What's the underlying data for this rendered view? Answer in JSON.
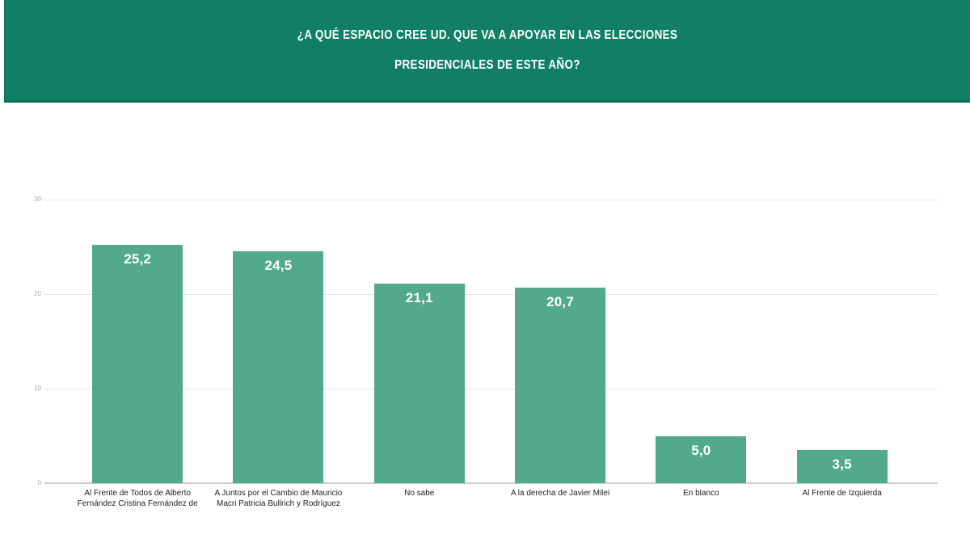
{
  "header": {
    "title_line1": "¿A QUÉ ESPACIO CREE UD. QUE VA A APOYAR EN LAS ELECCIONES",
    "title_line2": "PRESIDENCIALES DE ESTE AÑO?",
    "background_color": "#117f64",
    "border_color": "#0e6e57",
    "text_color": "#ffffff"
  },
  "chart_data": {
    "type": "bar",
    "title": "¿A qué espacio cree Ud. que va a apoyar en las elecciones presidenciales de este año?",
    "categories": [
      "Al Frente de Todos de Alberto Fernández Cristina Fernández de",
      "A Juntos por el Cambio de Mauricio Macri Patricia Bullrich y Rodríguez",
      "No sabe",
      "A la derecha de Javier Milei",
      "En blanco",
      "Al Frente de Izquierda"
    ],
    "category_lines": [
      [
        "Al Frente de Todos de Alberto",
        "Fernández Cristina Fernández de"
      ],
      [
        "A Juntos por el Cambio de Mauricio",
        "Macri Patricia Bullrich y Rodríguez"
      ],
      [
        "No sabe"
      ],
      [
        "A la derecha de Javier Milei"
      ],
      [
        "En blanco"
      ],
      [
        "Al Frente de Izquierda"
      ]
    ],
    "values": [
      25.2,
      24.5,
      21.1,
      20.7,
      5.0,
      3.5
    ],
    "value_labels": [
      "25,2",
      "24,5",
      "21,1",
      "20,7",
      "5,0",
      "3,5"
    ],
    "xlabel": "",
    "ylabel": "",
    "ylim": [
      0,
      30
    ],
    "yticks": [
      0,
      10,
      20,
      30
    ],
    "grid": true,
    "legend": "none",
    "bar_color": "#53a98b",
    "value_label_color": "#ffffff",
    "gridline_color": "#e6e6e6",
    "axis_tick_color": "#aaaaaa"
  }
}
